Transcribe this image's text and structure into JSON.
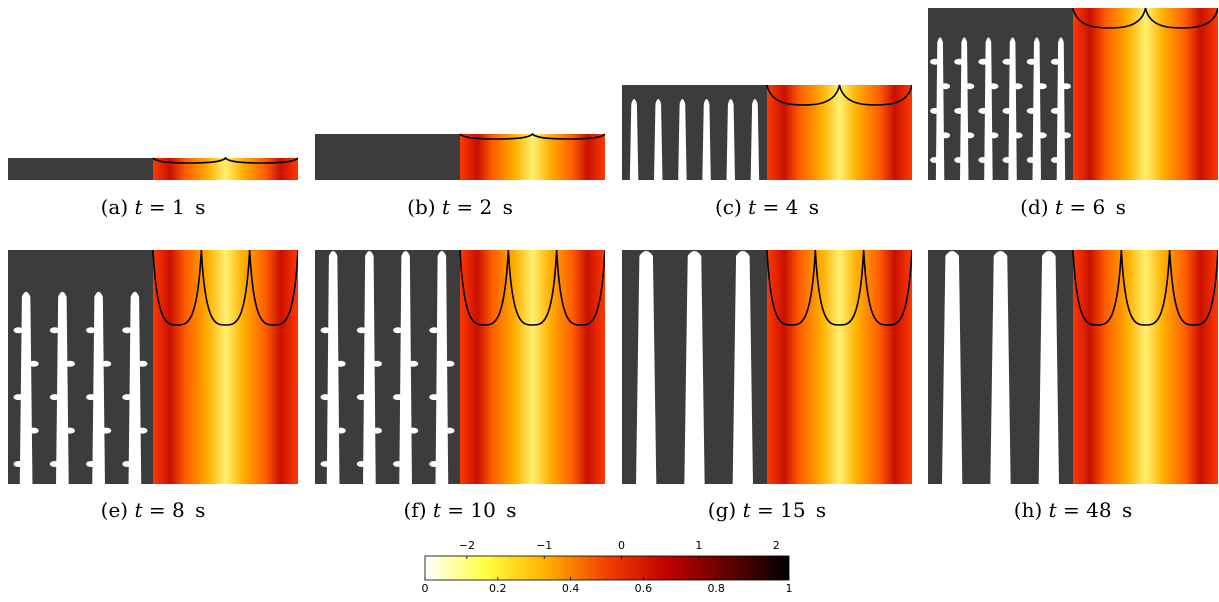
{
  "panels": [
    {
      "letter": "(a)",
      "var": "t",
      "eq": "=",
      "value": "1",
      "unit": "s",
      "stage": 0
    },
    {
      "letter": "(b)",
      "var": "t",
      "eq": "=",
      "value": "2",
      "unit": "s",
      "stage": 1
    },
    {
      "letter": "(c)",
      "var": "t",
      "eq": "=",
      "value": "4",
      "unit": "s",
      "stage": 2
    },
    {
      "letter": "(d)",
      "var": "t",
      "eq": "=",
      "value": "6",
      "unit": "s",
      "stage": 3
    },
    {
      "letter": "(e)",
      "var": "t",
      "eq": "=",
      "value": "8",
      "unit": "s",
      "stage": 4
    },
    {
      "letter": "(f)",
      "var": "t",
      "eq": "=",
      "value": "10",
      "unit": "s",
      "stage": 5
    },
    {
      "letter": "(g)",
      "var": "t",
      "eq": "=",
      "value": "15",
      "unit": "s",
      "stage": 6
    },
    {
      "letter": "(h)",
      "var": "t",
      "eq": "=",
      "value": "48",
      "unit": "s",
      "stage": 7
    }
  ],
  "colorbar": {
    "top_ticks": [
      "−2",
      "−1",
      "0",
      "1",
      "2"
    ],
    "bottom_ticks": [
      "0",
      "0.2",
      "0.4",
      "0.6",
      "0.8",
      "1"
    ],
    "colors": [
      "#ffffff",
      "#ffff40",
      "#ffb000",
      "#f04000",
      "#c00000",
      "#600000",
      "#000000"
    ]
  },
  "colors": {
    "solid": "#3c3c3c",
    "liquid": "#ffffff",
    "interface": "#000000"
  }
}
